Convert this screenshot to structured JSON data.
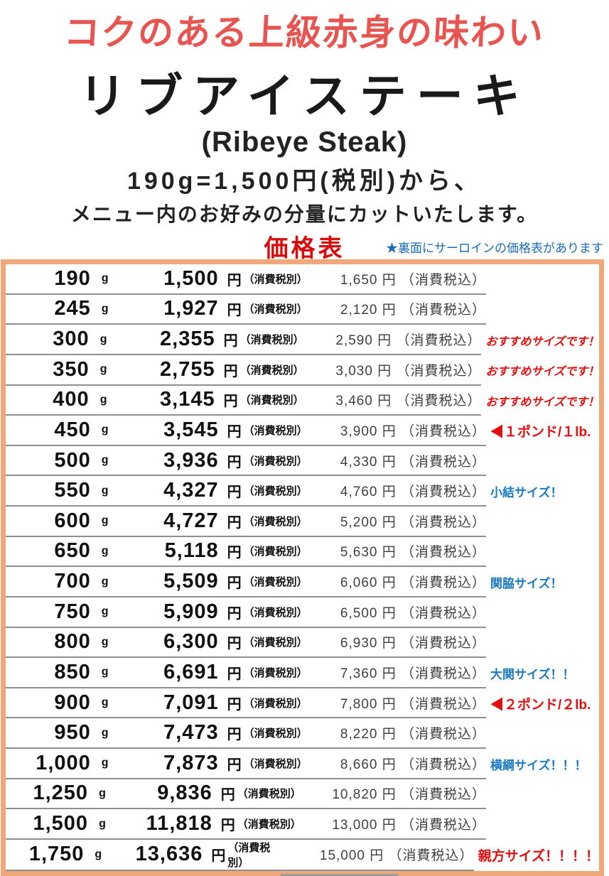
{
  "header": {
    "tagline": "コクのある上級赤身の味わい",
    "title": "リブアイステーキ",
    "title_en": "(Ribeye Steak)",
    "subtitle1": "190g=1,500円(税別)から、",
    "subtitle2": "メニュー内のお好みの分量にカットいたします。",
    "price_table_label": "価格表",
    "back_note": "★裏面にサーロインの価格表があります"
  },
  "table": {
    "unit_g": "g",
    "yen": "円",
    "excl_label": "（消費税別）",
    "incl_label": "（消費税込）",
    "rows": [
      {
        "weight": "190",
        "price_excl": "1,500",
        "price_incl": "1,650",
        "note": "",
        "note_class": ""
      },
      {
        "weight": "245",
        "price_excl": "1,927",
        "price_incl": "2,120",
        "note": "",
        "note_class": ""
      },
      {
        "weight": "300",
        "price_excl": "2,355",
        "price_incl": "2,590",
        "note": "おすすめサイズです！",
        "note_class": "rec"
      },
      {
        "weight": "350",
        "price_excl": "2,755",
        "price_incl": "3,030",
        "note": "おすすめサイズです！",
        "note_class": "rec"
      },
      {
        "weight": "400",
        "price_excl": "3,145",
        "price_incl": "3,460",
        "note": "おすすめサイズです！",
        "note_class": "rec"
      },
      {
        "weight": "450",
        "price_excl": "3,545",
        "price_incl": "3,900",
        "note": "◀１ポンド/１lb.",
        "note_class": "pound"
      },
      {
        "weight": "500",
        "price_excl": "3,936",
        "price_incl": "4,330",
        "note": "",
        "note_class": ""
      },
      {
        "weight": "550",
        "price_excl": "4,327",
        "price_incl": "4,760",
        "note": "小結サイズ！",
        "note_class": "blue"
      },
      {
        "weight": "600",
        "price_excl": "4,727",
        "price_incl": "5,200",
        "note": "",
        "note_class": ""
      },
      {
        "weight": "650",
        "price_excl": "5,118",
        "price_incl": "5,630",
        "note": "",
        "note_class": ""
      },
      {
        "weight": "700",
        "price_excl": "5,509",
        "price_incl": "6,060",
        "note": "関脇サイズ！",
        "note_class": "blue"
      },
      {
        "weight": "750",
        "price_excl": "5,909",
        "price_incl": "6,500",
        "note": "",
        "note_class": ""
      },
      {
        "weight": "800",
        "price_excl": "6,300",
        "price_incl": "6,930",
        "note": "",
        "note_class": ""
      },
      {
        "weight": "850",
        "price_excl": "6,691",
        "price_incl": "7,360",
        "note": "大関サイズ！！",
        "note_class": "blue"
      },
      {
        "weight": "900",
        "price_excl": "7,091",
        "price_incl": "7,800",
        "note": "◀２ポンド/２lb.",
        "note_class": "pound"
      },
      {
        "weight": "950",
        "price_excl": "7,473",
        "price_incl": "8,220",
        "note": "",
        "note_class": ""
      },
      {
        "weight": "1,000",
        "price_excl": "7,873",
        "price_incl": "8,660",
        "note": "横綱サイズ！！！",
        "note_class": "blue"
      },
      {
        "weight": "1,250",
        "price_excl": "9,836",
        "price_incl": "10,820",
        "note": "",
        "note_class": ""
      },
      {
        "weight": "1,500",
        "price_excl": "11,818",
        "price_incl": "13,000",
        "note": "",
        "note_class": ""
      },
      {
        "weight": "1,750",
        "price_excl": "13,636",
        "price_incl": "15,000",
        "note": "親方サイズ！！！！",
        "note_class": "pound"
      }
    ]
  },
  "colors": {
    "tagline_red": "#e85450",
    "label_red": "#dc0b0b",
    "note_red": "#e60f0f",
    "note_blue": "#1b79c0",
    "back_note_blue": "#1a6cb3",
    "table_border_orange": "#f0a87a",
    "row_separator_gray": "#8f8f8f"
  }
}
